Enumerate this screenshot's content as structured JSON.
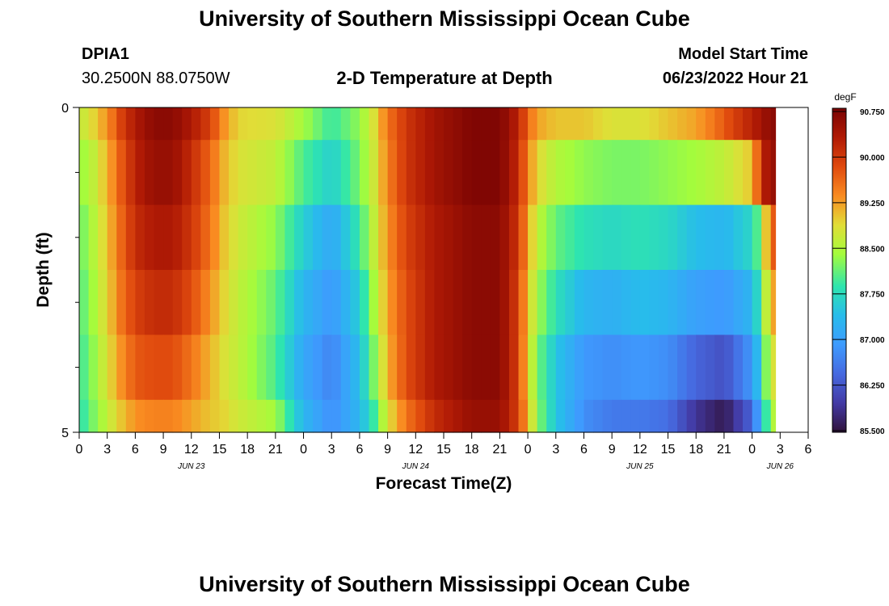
{
  "header": {
    "title": "University of Southern Mississippi Ocean Cube",
    "station_id": "DPIA1",
    "station_coords": "30.2500N  88.0750W",
    "model_start_label": "Model Start Time",
    "model_start_value": "06/23/2022 Hour 21",
    "footer_title": "University of Southern Mississippi Ocean Cube"
  },
  "chart_data": {
    "type": "heatmap",
    "title": "2-D Temperature at Depth",
    "xlabel": "Forecast Time(Z)",
    "ylabel": "Depth (ft)",
    "y_tick_labels": [
      "0",
      "5"
    ],
    "ylim": [
      0,
      5
    ],
    "x_tick_labels": [
      "0",
      "3",
      "6",
      "9",
      "12",
      "15",
      "18",
      "21",
      "0",
      "3",
      "6",
      "9",
      "12",
      "15",
      "18",
      "21",
      "0",
      "3",
      "6",
      "9",
      "12",
      "15",
      "18",
      "21",
      "0",
      "3",
      "6"
    ],
    "day_labels": [
      "JUN 23",
      "JUN 24",
      "JUN 25",
      "JUN 26"
    ],
    "colorbar": {
      "unit": "degF",
      "min": 85.5,
      "max": 90.75,
      "tick_labels": [
        "90.750",
        "90.000",
        "89.250",
        "88.500",
        "87.750",
        "87.000",
        "86.250",
        "85.500"
      ]
    },
    "depth_rows": [
      {
        "depth_range": [
          0,
          0.5
        ],
        "segments": [
          [
            0,
            88.6
          ],
          [
            1.5,
            88.9
          ],
          [
            3,
            89.3
          ],
          [
            4.5,
            89.9
          ],
          [
            6,
            90.3
          ],
          [
            8,
            90.6
          ],
          [
            10,
            90.6
          ],
          [
            12,
            90.3
          ],
          [
            14,
            89.9
          ],
          [
            15.5,
            89.3
          ],
          [
            17,
            88.9
          ],
          [
            21,
            88.8
          ],
          [
            24,
            88.4
          ],
          [
            27,
            87.9
          ],
          [
            30,
            88.3
          ],
          [
            31.5,
            88.8
          ],
          [
            33,
            89.5
          ],
          [
            35,
            90.0
          ],
          [
            38,
            90.4
          ],
          [
            42,
            90.7
          ],
          [
            45,
            90.7
          ],
          [
            47,
            90.2
          ],
          [
            48,
            89.6
          ],
          [
            49,
            89.2
          ],
          [
            51,
            89.0
          ],
          [
            54,
            89.0
          ],
          [
            57,
            88.8
          ],
          [
            60,
            88.8
          ],
          [
            63,
            89.0
          ],
          [
            66,
            89.2
          ],
          [
            68,
            89.5
          ],
          [
            70,
            89.9
          ],
          [
            72,
            90.2
          ],
          [
            74,
            90.6
          ],
          [
            75,
            90.6
          ]
        ]
      },
      {
        "depth_range": [
          0.5,
          1.5
        ],
        "segments": [
          [
            0,
            88.3
          ],
          [
            1.5,
            88.6
          ],
          [
            3,
            89.1
          ],
          [
            4.5,
            89.7
          ],
          [
            6,
            90.2
          ],
          [
            8,
            90.5
          ],
          [
            10,
            90.5
          ],
          [
            12,
            90.1
          ],
          [
            14,
            89.6
          ],
          [
            15.5,
            89.1
          ],
          [
            17,
            88.8
          ],
          [
            21,
            88.6
          ],
          [
            24,
            88.0
          ],
          [
            27,
            87.6
          ],
          [
            30,
            88.2
          ],
          [
            31.5,
            88.7
          ],
          [
            33,
            89.4
          ],
          [
            35,
            90.0
          ],
          [
            38,
            90.4
          ],
          [
            42,
            90.7
          ],
          [
            45,
            90.7
          ],
          [
            47,
            90.1
          ],
          [
            48,
            89.4
          ],
          [
            49,
            88.9
          ],
          [
            51,
            88.5
          ],
          [
            54,
            88.3
          ],
          [
            57,
            88.2
          ],
          [
            60,
            88.2
          ],
          [
            63,
            88.3
          ],
          [
            66,
            88.4
          ],
          [
            69,
            88.6
          ],
          [
            72,
            89.0
          ],
          [
            73,
            90.1
          ],
          [
            74,
            90.5
          ]
        ]
      },
      {
        "depth_range": [
          1.5,
          2.5
        ],
        "segments": [
          [
            0,
            88.1
          ],
          [
            1.5,
            88.5
          ],
          [
            3,
            89.0
          ],
          [
            4.5,
            89.6
          ],
          [
            6,
            90.1
          ],
          [
            8,
            90.3
          ],
          [
            10,
            90.3
          ],
          [
            12,
            90.0
          ],
          [
            14,
            89.5
          ],
          [
            15.5,
            89.0
          ],
          [
            17,
            88.7
          ],
          [
            21,
            88.3
          ],
          [
            24,
            87.6
          ],
          [
            27,
            87.1
          ],
          [
            30,
            87.9
          ],
          [
            31.5,
            88.6
          ],
          [
            33,
            89.3
          ],
          [
            35,
            89.9
          ],
          [
            38,
            90.3
          ],
          [
            42,
            90.6
          ],
          [
            45,
            90.6
          ],
          [
            47,
            90.0
          ],
          [
            48,
            89.2
          ],
          [
            49,
            88.6
          ],
          [
            51,
            88.1
          ],
          [
            54,
            87.8
          ],
          [
            57,
            87.7
          ],
          [
            60,
            87.8
          ],
          [
            63,
            87.7
          ],
          [
            66,
            87.4
          ],
          [
            69,
            87.3
          ],
          [
            72,
            87.7
          ],
          [
            73,
            88.3
          ],
          [
            74,
            89.7
          ]
        ]
      },
      {
        "depth_range": [
          2.5,
          3.5
        ],
        "segments": [
          [
            0,
            88.0
          ],
          [
            1.5,
            88.4
          ],
          [
            3,
            88.9
          ],
          [
            4.5,
            89.5
          ],
          [
            6,
            89.9
          ],
          [
            8,
            90.1
          ],
          [
            10,
            90.1
          ],
          [
            12,
            89.8
          ],
          [
            14,
            89.3
          ],
          [
            15.5,
            88.9
          ],
          [
            17,
            88.6
          ],
          [
            21,
            88.1
          ],
          [
            24,
            87.3
          ],
          [
            27,
            86.9
          ],
          [
            30,
            87.6
          ],
          [
            31.5,
            88.4
          ],
          [
            33,
            89.2
          ],
          [
            35,
            89.8
          ],
          [
            38,
            90.3
          ],
          [
            42,
            90.6
          ],
          [
            45,
            90.6
          ],
          [
            47,
            89.9
          ],
          [
            48,
            89.0
          ],
          [
            49,
            88.4
          ],
          [
            51,
            87.8
          ],
          [
            54,
            87.3
          ],
          [
            57,
            87.2
          ],
          [
            60,
            87.4
          ],
          [
            63,
            87.3
          ],
          [
            66,
            87.0
          ],
          [
            69,
            86.9
          ],
          [
            72,
            87.3
          ],
          [
            73,
            88.0
          ],
          [
            74,
            89.2
          ]
        ]
      },
      {
        "depth_range": [
          3.5,
          4.5
        ],
        "segments": [
          [
            0,
            87.9
          ],
          [
            1.5,
            88.3
          ],
          [
            3,
            88.8
          ],
          [
            4.5,
            89.3
          ],
          [
            6,
            89.7
          ],
          [
            8,
            89.8
          ],
          [
            10,
            89.8
          ],
          [
            12,
            89.5
          ],
          [
            14,
            89.1
          ],
          [
            15.5,
            88.8
          ],
          [
            17,
            88.6
          ],
          [
            21,
            88.0
          ],
          [
            24,
            87.1
          ],
          [
            27,
            86.7
          ],
          [
            30,
            87.4
          ],
          [
            31.5,
            88.2
          ],
          [
            33,
            89.1
          ],
          [
            35,
            89.8
          ],
          [
            38,
            90.3
          ],
          [
            42,
            90.6
          ],
          [
            45,
            90.6
          ],
          [
            47,
            89.9
          ],
          [
            48,
            88.9
          ],
          [
            49,
            88.2
          ],
          [
            51,
            87.5
          ],
          [
            54,
            86.9
          ],
          [
            57,
            86.8
          ],
          [
            60,
            86.9
          ],
          [
            63,
            86.8
          ],
          [
            66,
            86.4
          ],
          [
            69,
            86.2
          ],
          [
            72,
            86.9
          ],
          [
            73,
            87.7
          ],
          [
            74,
            88.8
          ]
        ]
      },
      {
        "depth_range": [
          4.5,
          5
        ],
        "segments": [
          [
            0,
            87.8
          ],
          [
            1.5,
            88.2
          ],
          [
            3,
            88.6
          ],
          [
            4.5,
            89.0
          ],
          [
            6,
            89.3
          ],
          [
            8,
            89.4
          ],
          [
            10,
            89.4
          ],
          [
            12,
            89.2
          ],
          [
            14,
            89.0
          ],
          [
            15.5,
            88.9
          ],
          [
            17,
            88.7
          ],
          [
            21,
            88.4
          ],
          [
            24,
            87.3
          ],
          [
            27,
            86.8
          ],
          [
            30,
            87.3
          ],
          [
            31.5,
            87.9
          ],
          [
            33,
            88.8
          ],
          [
            35,
            89.5
          ],
          [
            38,
            90.1
          ],
          [
            42,
            90.5
          ],
          [
            45,
            90.5
          ],
          [
            47,
            89.9
          ],
          [
            48,
            89.1
          ],
          [
            49,
            88.3
          ],
          [
            51,
            87.5
          ],
          [
            54,
            86.8
          ],
          [
            57,
            86.6
          ],
          [
            60,
            86.6
          ],
          [
            63,
            86.5
          ],
          [
            66,
            85.9
          ],
          [
            69,
            85.6
          ],
          [
            72,
            86.4
          ],
          [
            73,
            87.3
          ],
          [
            74,
            88.5
          ]
        ]
      }
    ]
  }
}
